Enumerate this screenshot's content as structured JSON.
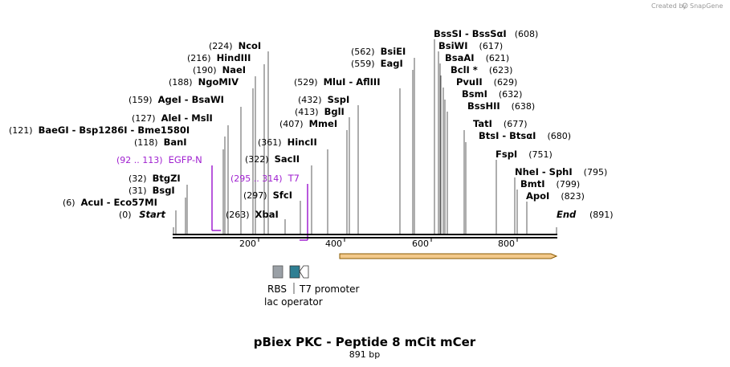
{
  "credit": "Created by",
  "credit_brand": "SnapGene",
  "title": "pBiex PKC - Peptide 8 mCit mCer",
  "subtitle": "891 bp",
  "total_bp": 891,
  "axis_ticks": [
    "200",
    "400",
    "600",
    "800"
  ],
  "start_label": "Start",
  "start_pos": "(0)",
  "end_label": "End",
  "end_pos": "(891)",
  "sites": [
    {
      "pos": "(6)",
      "name": "AcuI  -  Eco57MI"
    },
    {
      "pos": "(31)",
      "name": "BsgI"
    },
    {
      "pos": "(32)",
      "name": "BtgZI"
    },
    {
      "pos": "(118)",
      "name": "BanI"
    },
    {
      "pos": "(121)",
      "name": "BaeGI  -  Bsp1286I  -  Bme1580I"
    },
    {
      "pos": "(127)",
      "name": "AleI  -  MslI"
    },
    {
      "pos": "(159)",
      "name": "AgeI  -  BsaWI"
    },
    {
      "pos": "(188)",
      "name": "NgoMIV"
    },
    {
      "pos": "(190)",
      "name": "NaeI"
    },
    {
      "pos": "(216)",
      "name": "HindIII"
    },
    {
      "pos": "(224)",
      "name": "NcoI"
    },
    {
      "pos": "(263)",
      "name": "XbaI"
    },
    {
      "pos": "(297)",
      "name": "SfcI"
    },
    {
      "pos": "(322)",
      "name": "SacII"
    },
    {
      "pos": "(361)",
      "name": "HincII"
    },
    {
      "pos": "(407)",
      "name": "MmeI"
    },
    {
      "pos": "(413)",
      "name": "BglI"
    },
    {
      "pos": "(432)",
      "name": "SspI"
    },
    {
      "pos": "(529)",
      "name": "MluI  -  AflIII"
    },
    {
      "pos": "(559)",
      "name": "EagI"
    },
    {
      "pos": "(562)",
      "name": "BsiEI"
    },
    {
      "pos": "(608)",
      "name": "BssSI  -  BssSαI",
      "pos_right": true
    },
    {
      "pos": "(617)",
      "name": "BsiWI",
      "pos_right": true
    },
    {
      "pos": "(621)",
      "name": "BsaAI",
      "pos_right": true
    },
    {
      "pos": "(623)",
      "name": "BclI *",
      "pos_right": true
    },
    {
      "pos": "(629)",
      "name": "PvuII",
      "pos_right": true
    },
    {
      "pos": "(632)",
      "name": "BsmI",
      "pos_right": true
    },
    {
      "pos": "(638)",
      "name": "BssHII",
      "pos_right": true
    },
    {
      "pos": "(677)",
      "name": "TatI",
      "pos_right": true
    },
    {
      "pos": "(680)",
      "name": "BtsI  -  BtsαI",
      "pos_right": true
    },
    {
      "pos": "(751)",
      "name": "FspI",
      "pos_right": true
    },
    {
      "pos": "(795)",
      "name": "NheI  -  SphI",
      "pos_right": true
    },
    {
      "pos": "(799)",
      "name": "BmtI",
      "pos_right": true
    },
    {
      "pos": "(823)",
      "name": "ApoI",
      "pos_right": true
    }
  ],
  "primers": [
    {
      "range": "(92 .. 113)",
      "name": "EGFP-N"
    },
    {
      "range": "(295 .. 314)",
      "name": "T7"
    }
  ],
  "features": {
    "rbs": "RBS",
    "t7": "T7 promoter",
    "lac": "lac operator"
  },
  "colors": {
    "primer": "#a020d0",
    "orf_fill": "#f3c98b",
    "orf_stroke": "#8a5a00",
    "rbs": "#9aa0a6",
    "lac": "#2f7f93"
  }
}
